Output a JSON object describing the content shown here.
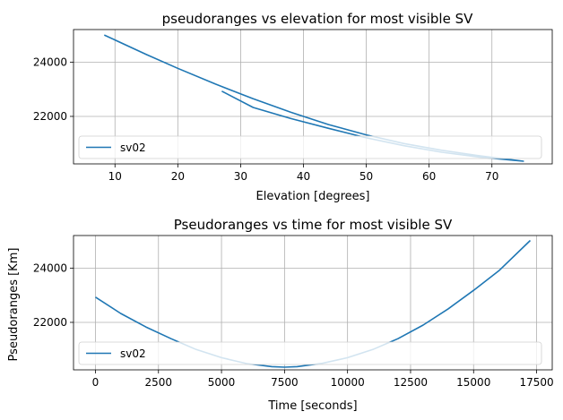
{
  "chart_data": [
    {
      "type": "line",
      "title": "pseudoranges vs elevation for most visible SV",
      "xlabel": "Elevation [degrees]",
      "ylabel": "",
      "xlim": [
        3.4,
        79.6
      ],
      "ylim": [
        20250,
        25200
      ],
      "xticks": [
        10,
        20,
        30,
        40,
        50,
        60,
        70
      ],
      "yticks": [
        22000,
        24000
      ],
      "grid": true,
      "legend": "lower-left",
      "series": [
        {
          "name": "sv02",
          "color": "#1f77b4",
          "x": [
            8.3,
            15,
            20,
            26,
            32,
            38,
            44,
            50,
            56,
            62,
            68,
            75,
            68,
            62,
            56,
            50,
            44,
            38,
            32,
            27
          ],
          "y": [
            25000,
            24280,
            23770,
            23190,
            22650,
            22150,
            21700,
            21320,
            21000,
            20750,
            20550,
            20350,
            20500,
            20680,
            20920,
            21210,
            21560,
            21920,
            22330,
            22930
          ]
        }
      ]
    },
    {
      "type": "line",
      "title": "Pseudoranges vs time for most visible SV",
      "xlabel": "Time [seconds]",
      "ylabel": "Pseudoranges [Km]",
      "xlim": [
        -870,
        18120
      ],
      "ylim": [
        20250,
        25200
      ],
      "xticks": [
        0,
        2500,
        5000,
        7500,
        10000,
        12500,
        15000,
        17500
      ],
      "yticks": [
        22000,
        24000
      ],
      "grid": true,
      "legend": "lower-left",
      "series": [
        {
          "name": "sv02",
          "color": "#1f77b4",
          "x": [
            0,
            1000,
            2000,
            3000,
            4000,
            5000,
            6000,
            7000,
            7500,
            8000,
            9000,
            10000,
            11000,
            12000,
            13000,
            14000,
            15000,
            16000,
            17250
          ],
          "y": [
            22930,
            22330,
            21830,
            21400,
            21000,
            20700,
            20480,
            20370,
            20350,
            20370,
            20490,
            20700,
            21000,
            21400,
            21900,
            22500,
            23180,
            23900,
            25020
          ]
        }
      ]
    }
  ]
}
